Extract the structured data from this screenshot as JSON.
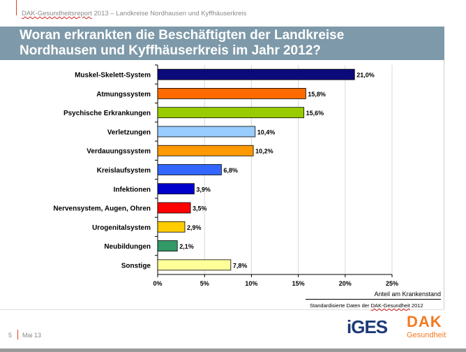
{
  "header": {
    "brand": "DAK-Gesundheitsreport",
    "rest": " 2013 – Landkreise Nordhausen und Kyffhäuserkreis"
  },
  "title_line1": "Woran erkrankten die Beschäftigten der Landkreise",
  "title_line2": "Nordhausen und Kyffhäuserkreis im Jahr 2012?",
  "chart_data": {
    "type": "bar",
    "orientation": "horizontal",
    "categories": [
      "Muskel-Skelett-System",
      "Atmungssystem",
      "Psychische Erkrankungen",
      "Verletzungen",
      "Verdauungssystem",
      "Kreislaufsystem",
      "Infektionen",
      "Nervensystem, Augen, Ohren",
      "Urogenitalsystem",
      "Neubildungen",
      "Sonstige"
    ],
    "values": [
      21.0,
      15.8,
      15.6,
      10.4,
      10.2,
      6.8,
      3.9,
      3.5,
      2.9,
      2.1,
      7.8
    ],
    "data_labels": [
      "21,0%",
      "15,8%",
      "15,6%",
      "10,4%",
      "10,2%",
      "6,8%",
      "3,9%",
      "3,5%",
      "2,9%",
      "2,1%",
      "7,8%"
    ],
    "colors": [
      "#0a0a7a",
      "#ff6a00",
      "#99cc00",
      "#99ccff",
      "#ff9900",
      "#3366ff",
      "#0000cc",
      "#ff0000",
      "#ffcc00",
      "#339966",
      "#ffff99"
    ],
    "xlim": [
      0,
      25
    ],
    "xticks": [
      "0%",
      "5%",
      "10%",
      "15%",
      "20%",
      "25%"
    ],
    "xlabel": "Anteil am Krankenstand",
    "grid": true
  },
  "source": {
    "prefix": "Standardisierte Daten der ",
    "brand": "DAK-Gesundheit",
    "year": " 2012"
  },
  "footer": {
    "page": "5",
    "date": "Mai 13"
  },
  "logos": {
    "iges": "iGES",
    "dak": "DAK",
    "dak_sub": "Gesundheit"
  }
}
